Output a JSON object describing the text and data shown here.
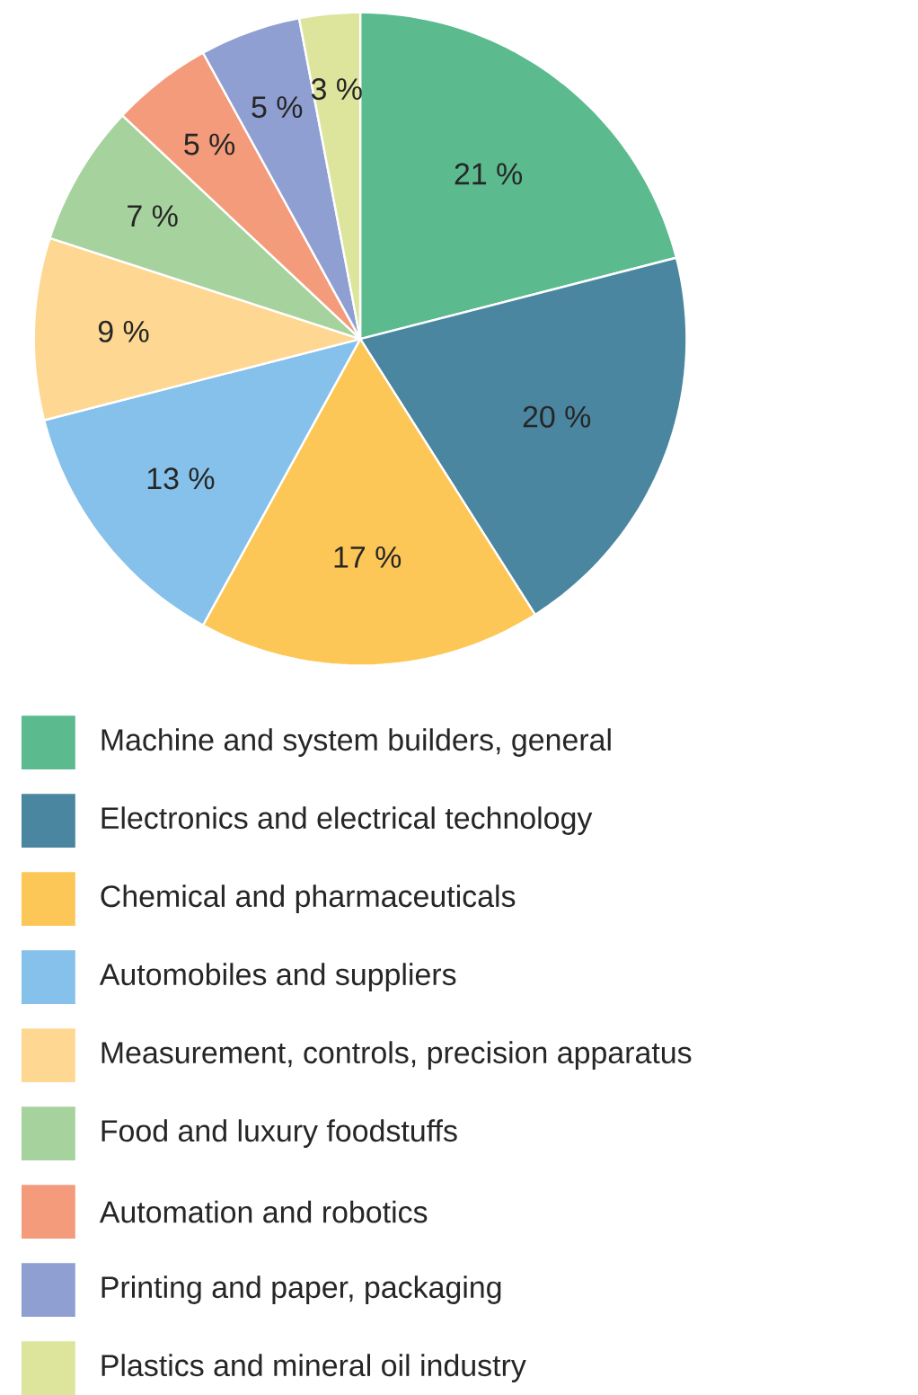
{
  "chart_data": {
    "type": "pie",
    "categories": [
      "Machine and system builders, general",
      "Electronics and electrical technology",
      "Chemical and pharmaceuticals",
      "Automobiles and suppliers",
      "Measurement, controls, precision apparatus",
      "Food and luxury foodstuffs",
      "Automation and robotics",
      "Printing and paper, packaging",
      "Plastics and mineral oil industry"
    ],
    "values": [
      21,
      20,
      17,
      13,
      9,
      7,
      5,
      5,
      3
    ],
    "value_labels": [
      "21 %",
      "20 %",
      "17 %",
      "13 %",
      "9 %",
      "7 %",
      "5 %",
      "5 %",
      "3 %"
    ],
    "colors": [
      "#5bbb8f",
      "#4a86a0",
      "#fdc757",
      "#85c1ea",
      "#fed893",
      "#a6d29e",
      "#f49b7c",
      "#8f9fd1",
      "#dde59d"
    ],
    "legend": "bottom"
  }
}
